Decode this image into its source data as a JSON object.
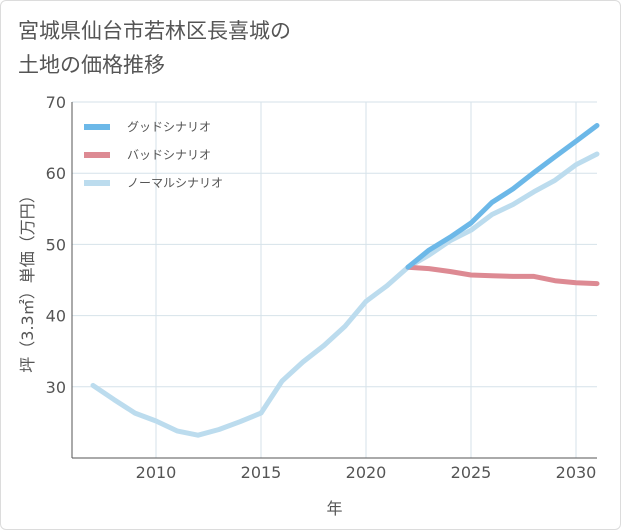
{
  "title_lines": [
    "宮城県仙台市若林区長喜城の",
    "土地の価格推移"
  ],
  "chart_data": {
    "type": "line",
    "title": "宮城県仙台市若林区長喜城の土地の価格推移",
    "xlabel": "年",
    "ylabel": "坪（3.3㎡）単価（万円）",
    "xlim": [
      2006,
      2031
    ],
    "ylim": [
      20,
      70
    ],
    "xticks": [
      2010,
      2015,
      2020,
      2025,
      2030
    ],
    "yticks": [
      30,
      40,
      50,
      60,
      70
    ],
    "grid": true,
    "legend_position": "top-left",
    "series": [
      {
        "name": "グッドシナリオ",
        "color": "#6cb8e8",
        "x": [
          2022,
          2023,
          2024,
          2025,
          2026,
          2027,
          2028,
          2029,
          2030,
          2031
        ],
        "y": [
          46.8,
          49.2,
          51.0,
          53.0,
          55.9,
          57.8,
          60.1,
          62.3,
          64.5,
          66.7
        ]
      },
      {
        "name": "バッドシナリオ",
        "color": "#dd8a93",
        "x": [
          2022,
          2023,
          2024,
          2025,
          2026,
          2027,
          2028,
          2029,
          2030,
          2031
        ],
        "y": [
          46.8,
          46.6,
          46.2,
          45.7,
          45.6,
          45.5,
          45.5,
          44.9,
          44.6,
          44.5
        ]
      },
      {
        "name": "ノーマルシナリオ",
        "color": "#bcdcee",
        "x": [
          2007,
          2008,
          2009,
          2010,
          2011,
          2012,
          2013,
          2014,
          2015,
          2016,
          2017,
          2018,
          2019,
          2020,
          2021,
          2022,
          2023,
          2024,
          2025,
          2026,
          2027,
          2028,
          2029,
          2030,
          2031
        ],
        "y": [
          30.2,
          28.2,
          26.3,
          25.2,
          23.8,
          23.2,
          24.0,
          25.1,
          26.3,
          30.8,
          33.5,
          35.8,
          38.5,
          42.0,
          44.2,
          46.8,
          48.5,
          50.5,
          52.0,
          54.2,
          55.6,
          57.4,
          59.0,
          61.2,
          62.7
        ]
      }
    ]
  }
}
